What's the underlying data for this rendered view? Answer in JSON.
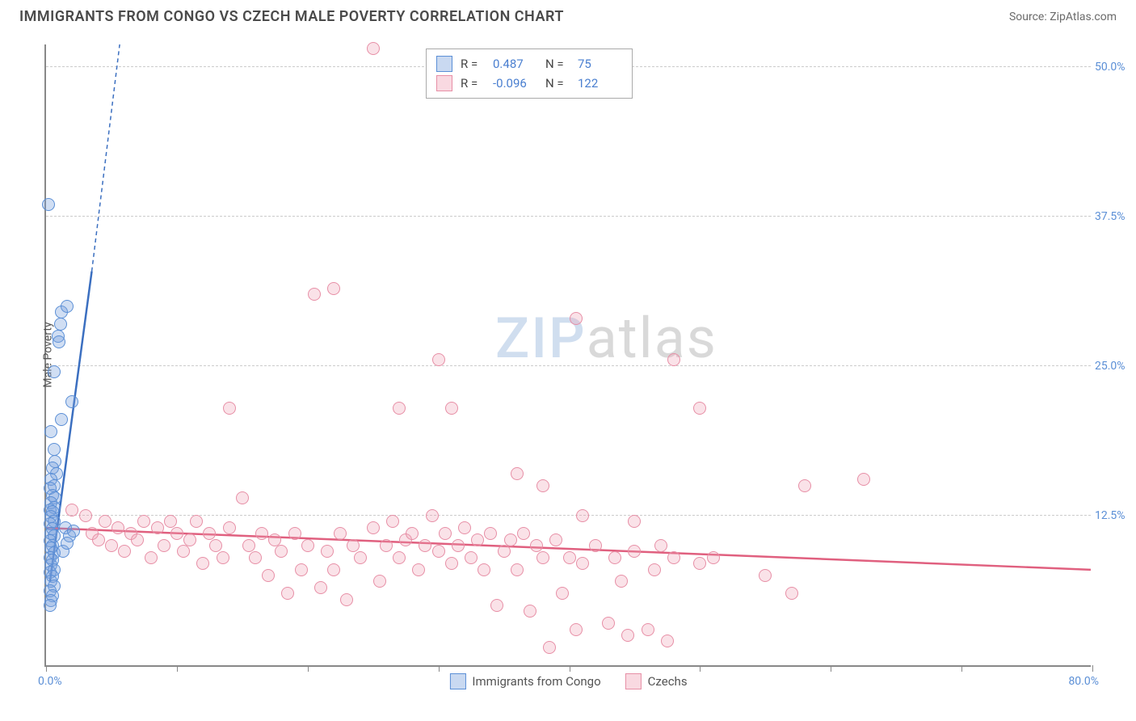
{
  "title": "IMMIGRANTS FROM CONGO VS CZECH MALE POVERTY CORRELATION CHART",
  "source_label": "Source: ZipAtlas.com",
  "y_axis_title": "Male Poverty",
  "watermark": {
    "part1": "ZIP",
    "part2": "atlas"
  },
  "chart": {
    "type": "scatter",
    "xlim": [
      0,
      80
    ],
    "ylim": [
      0,
      52
    ],
    "x_tick_positions": [
      0,
      10,
      20,
      30,
      40,
      50,
      60,
      70,
      80
    ],
    "x_label_min": "0.0%",
    "x_label_max": "80.0%",
    "y_gridlines": [
      12.5,
      25.0,
      37.5,
      50.0
    ],
    "y_tick_labels": [
      "12.5%",
      "25.0%",
      "37.5%",
      "50.0%"
    ],
    "background_color": "#ffffff",
    "grid_color": "#cccccc",
    "axis_color": "#888888",
    "marker_radius": 8,
    "series": [
      {
        "id": "congo",
        "label": "Immigrants from Congo",
        "color_fill": "rgba(120,160,220,0.35)",
        "color_stroke": "#5b8fd6",
        "r_value": "0.487",
        "n_value": "75",
        "trend": {
          "x1": 0.3,
          "y1": 7,
          "x2": 3.5,
          "y2": 33,
          "extend_x2": 8,
          "extend_y2": 73,
          "stroke": "#3b6fc0",
          "width": 2.5
        },
        "points": [
          [
            0.2,
            38.5
          ],
          [
            1.2,
            29.5
          ],
          [
            1.6,
            30
          ],
          [
            1.1,
            28.5
          ],
          [
            0.9,
            27.5
          ],
          [
            1.0,
            27
          ],
          [
            0.6,
            24.5
          ],
          [
            2.0,
            22
          ],
          [
            1.2,
            20.5
          ],
          [
            0.4,
            19.5
          ],
          [
            0.6,
            18
          ],
          [
            0.7,
            17
          ],
          [
            0.5,
            16.5
          ],
          [
            0.8,
            16
          ],
          [
            0.4,
            15.5
          ],
          [
            0.6,
            15
          ],
          [
            0.3,
            14.8
          ],
          [
            0.5,
            14.2
          ],
          [
            0.7,
            14
          ],
          [
            0.4,
            13.6
          ],
          [
            0.6,
            13.2
          ],
          [
            0.3,
            13
          ],
          [
            0.5,
            12.8
          ],
          [
            0.4,
            12.4
          ],
          [
            0.6,
            12
          ],
          [
            0.3,
            11.8
          ],
          [
            0.5,
            11.4
          ],
          [
            0.4,
            11
          ],
          [
            0.6,
            10.8
          ],
          [
            0.3,
            10.4
          ],
          [
            0.5,
            10
          ],
          [
            0.4,
            9.8
          ],
          [
            0.6,
            9.4
          ],
          [
            0.3,
            9
          ],
          [
            0.5,
            8.8
          ],
          [
            0.4,
            8.4
          ],
          [
            0.6,
            8
          ],
          [
            0.3,
            7.8
          ],
          [
            0.5,
            7.4
          ],
          [
            0.4,
            7
          ],
          [
            0.6,
            6.6
          ],
          [
            0.3,
            6.2
          ],
          [
            0.5,
            5.8
          ],
          [
            0.4,
            5.4
          ],
          [
            0.3,
            5
          ],
          [
            1.5,
            11.5
          ],
          [
            1.8,
            10.8
          ],
          [
            2.1,
            11.2
          ],
          [
            1.3,
            9.5
          ],
          [
            1.6,
            10.2
          ]
        ]
      },
      {
        "id": "czechs",
        "label": "Czechs",
        "color_fill": "rgba(240,160,180,0.3)",
        "color_stroke": "#e78fa6",
        "r_value": "-0.096",
        "n_value": "122",
        "trend": {
          "x1": 0,
          "y1": 11.5,
          "x2": 80,
          "y2": 8,
          "stroke": "#e0607f",
          "width": 2.5
        },
        "points": [
          [
            25,
            51.5
          ],
          [
            22,
            31.5
          ],
          [
            20.5,
            31
          ],
          [
            40.5,
            29
          ],
          [
            48,
            25.5
          ],
          [
            30,
            25.5
          ],
          [
            14,
            21.5
          ],
          [
            27,
            21.5
          ],
          [
            31,
            21.5
          ],
          [
            50,
            21.5
          ],
          [
            62.5,
            15.5
          ],
          [
            36,
            16
          ],
          [
            2,
            13
          ],
          [
            3,
            12.5
          ],
          [
            3.5,
            11
          ],
          [
            4,
            10.5
          ],
          [
            4.5,
            12
          ],
          [
            5,
            10
          ],
          [
            5.5,
            11.5
          ],
          [
            6,
            9.5
          ],
          [
            6.5,
            11
          ],
          [
            7,
            10.5
          ],
          [
            7.5,
            12
          ],
          [
            8,
            9
          ],
          [
            8.5,
            11.5
          ],
          [
            9,
            10
          ],
          [
            9.5,
            12
          ],
          [
            10,
            11
          ],
          [
            10.5,
            9.5
          ],
          [
            11,
            10.5
          ],
          [
            11.5,
            12
          ],
          [
            12,
            8.5
          ],
          [
            12.5,
            11
          ],
          [
            13,
            10
          ],
          [
            13.5,
            9
          ],
          [
            14,
            11.5
          ],
          [
            15,
            14
          ],
          [
            15.5,
            10
          ],
          [
            16,
            9
          ],
          [
            16.5,
            11
          ],
          [
            17,
            7.5
          ],
          [
            17.5,
            10.5
          ],
          [
            18,
            9.5
          ],
          [
            18.5,
            6
          ],
          [
            19,
            11
          ],
          [
            19.5,
            8
          ],
          [
            20,
            10
          ],
          [
            21,
            6.5
          ],
          [
            21.5,
            9.5
          ],
          [
            22,
            8
          ],
          [
            22.5,
            11
          ],
          [
            23,
            5.5
          ],
          [
            23.5,
            10
          ],
          [
            24,
            9
          ],
          [
            25,
            11.5
          ],
          [
            25.5,
            7
          ],
          [
            26,
            10
          ],
          [
            26.5,
            12
          ],
          [
            27,
            9
          ],
          [
            27.5,
            10.5
          ],
          [
            28,
            11
          ],
          [
            28.5,
            8
          ],
          [
            29,
            10
          ],
          [
            29.5,
            12.5
          ],
          [
            30,
            9.5
          ],
          [
            30.5,
            11
          ],
          [
            31,
            8.5
          ],
          [
            31.5,
            10
          ],
          [
            32,
            11.5
          ],
          [
            32.5,
            9
          ],
          [
            33,
            10.5
          ],
          [
            33.5,
            8
          ],
          [
            34,
            11
          ],
          [
            34.5,
            5
          ],
          [
            35,
            9.5
          ],
          [
            35.5,
            10.5
          ],
          [
            36,
            8
          ],
          [
            36.5,
            11
          ],
          [
            37,
            4.5
          ],
          [
            37.5,
            10
          ],
          [
            38,
            9
          ],
          [
            38.5,
            1.5
          ],
          [
            39,
            10.5
          ],
          [
            39.5,
            6
          ],
          [
            40,
            9
          ],
          [
            40.5,
            3
          ],
          [
            41,
            8.5
          ],
          [
            42,
            10
          ],
          [
            43,
            3.5
          ],
          [
            43.5,
            9
          ],
          [
            44,
            7
          ],
          [
            44.5,
            2.5
          ],
          [
            45,
            9.5
          ],
          [
            46,
            3
          ],
          [
            46.5,
            8
          ],
          [
            47,
            10
          ],
          [
            47.5,
            2
          ],
          [
            48,
            9
          ],
          [
            50,
            8.5
          ],
          [
            55,
            7.5
          ],
          [
            57,
            6
          ],
          [
            58,
            15
          ],
          [
            38,
            15
          ],
          [
            45,
            12
          ],
          [
            51,
            9
          ],
          [
            41,
            12.5
          ]
        ]
      }
    ]
  },
  "legend_stat_labels": {
    "r": "R =",
    "n": "N ="
  }
}
